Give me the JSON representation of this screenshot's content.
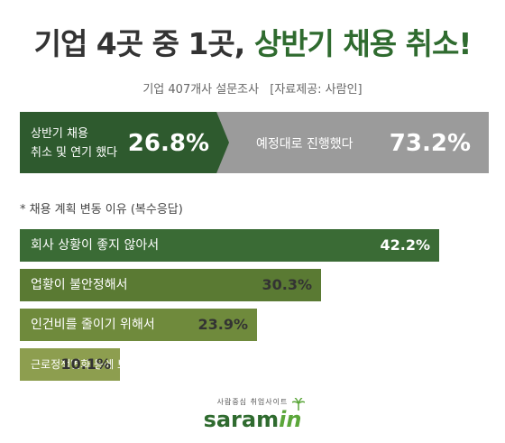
{
  "title": {
    "part1": "기업 4곳 중 1곳,",
    "part2": "상반기 채용 취소!"
  },
  "subtitle": {
    "survey": "기업 407개사 설문조사",
    "source": "[자료제공: 사람인]"
  },
  "split": {
    "left": {
      "label_line1": "상반기 채용",
      "label_line2": "취소 및 연기 했다",
      "value_text": "26.8%",
      "value": 26.8
    },
    "right": {
      "label": "예정대로 진행했다",
      "value_text": "73.2%",
      "value": 73.2
    }
  },
  "note": "* 채용 계획 변동 이유 (복수응답)",
  "colors": {
    "dark_green": "#2e5a2e",
    "gray": "#9b9b9b",
    "bar_colors": [
      "#3a6b35",
      "#5a7a33",
      "#6f8a3c",
      "#8d9e4f"
    ]
  },
  "chart_data": {
    "type": "bar",
    "orientation": "horizontal",
    "title": "* 채용 계획 변동 이유 (복수응답)",
    "categories": [
      "회사 상황이 좋지 않아서",
      "업황이 불안정해서",
      "인건비를 줄이기 위해서",
      "근로정책변화 등에 보수적인 대응을 위해"
    ],
    "values": [
      42.2,
      30.3,
      23.9,
      10.1
    ],
    "value_labels": [
      "42.2%",
      "30.3%",
      "23.9%",
      "10.1%"
    ],
    "xlim": [
      0,
      42.2
    ],
    "grid": false
  },
  "logo": {
    "tagline": "사람중심 취업사이트",
    "brand_main": "saram",
    "brand_in": "in",
    "palm_icon": "palm-tree-icon"
  }
}
